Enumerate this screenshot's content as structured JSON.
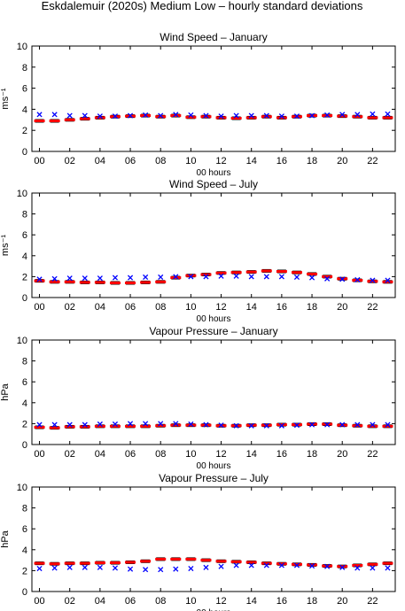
{
  "figure": {
    "title": "Eskdalemuir (2020s) Medium Low – hourly standard deviations"
  },
  "chart_data": [
    {
      "type": "scatter",
      "title": "Wind Speed – January",
      "xlabel": "00 hours",
      "ylabel": "ms⁻¹",
      "xlim": [
        -0.5,
        23.5
      ],
      "ylim": [
        0,
        10
      ],
      "yticks": [
        0,
        2,
        4,
        6,
        8,
        10
      ],
      "xticks": [
        "00",
        "02",
        "04",
        "06",
        "08",
        "10",
        "12",
        "14",
        "16",
        "18",
        "20",
        "22"
      ],
      "observed_marker_color": "#0000ff",
      "projected_marker_color": "#ff0000",
      "observed": [
        3.5,
        3.5,
        3.4,
        3.4,
        3.35,
        3.35,
        3.4,
        3.45,
        3.4,
        3.5,
        3.45,
        3.4,
        3.35,
        3.4,
        3.4,
        3.4,
        3.35,
        3.35,
        3.4,
        3.45,
        3.5,
        3.5,
        3.55,
        3.55
      ],
      "projected": [
        2.9,
        2.9,
        3.0,
        3.1,
        3.2,
        3.3,
        3.35,
        3.4,
        3.3,
        3.4,
        3.25,
        3.3,
        3.2,
        3.15,
        3.2,
        3.3,
        3.2,
        3.3,
        3.4,
        3.4,
        3.35,
        3.3,
        3.2,
        3.2
      ],
      "error": [
        0.12,
        0.12,
        0.12,
        0.12,
        0.12,
        0.12,
        0.12,
        0.12,
        0.12,
        0.12,
        0.12,
        0.12,
        0.12,
        0.12,
        0.12,
        0.12,
        0.12,
        0.12,
        0.12,
        0.12,
        0.12,
        0.12,
        0.12,
        0.12
      ]
    },
    {
      "type": "scatter",
      "title": "Wind Speed – July",
      "xlabel": "00 hours",
      "ylabel": "ms⁻¹",
      "xlim": [
        -0.5,
        23.5
      ],
      "ylim": [
        0,
        10
      ],
      "yticks": [
        0,
        2,
        4,
        6,
        8,
        10
      ],
      "xticks": [
        "00",
        "02",
        "04",
        "06",
        "08",
        "10",
        "12",
        "14",
        "16",
        "18",
        "20",
        "22"
      ],
      "observed_marker_color": "#0000ff",
      "projected_marker_color": "#ff0000",
      "observed": [
        1.75,
        1.8,
        1.85,
        1.85,
        1.85,
        1.9,
        1.9,
        1.95,
        1.95,
        2.0,
        2.0,
        2.0,
        2.05,
        2.05,
        2.0,
        2.0,
        2.0,
        1.95,
        1.9,
        1.8,
        1.75,
        1.7,
        1.65,
        1.65
      ],
      "projected": [
        1.6,
        1.5,
        1.5,
        1.45,
        1.45,
        1.4,
        1.4,
        1.45,
        1.5,
        1.9,
        2.1,
        2.2,
        2.35,
        2.4,
        2.45,
        2.55,
        2.5,
        2.4,
        2.25,
        2.0,
        1.8,
        1.65,
        1.55,
        1.5
      ],
      "error": [
        0.1,
        0.1,
        0.1,
        0.1,
        0.1,
        0.1,
        0.1,
        0.1,
        0.1,
        0.1,
        0.1,
        0.1,
        0.1,
        0.1,
        0.1,
        0.1,
        0.1,
        0.1,
        0.1,
        0.1,
        0.1,
        0.1,
        0.1,
        0.1
      ]
    },
    {
      "type": "scatter",
      "title": "Vapour Pressure – January",
      "xlabel": "00 hours",
      "ylabel": "hPa",
      "xlim": [
        -0.5,
        23.5
      ],
      "ylim": [
        0,
        10
      ],
      "yticks": [
        0,
        2,
        4,
        6,
        8,
        10
      ],
      "xticks": [
        "00",
        "02",
        "04",
        "06",
        "08",
        "10",
        "12",
        "14",
        "16",
        "18",
        "20",
        "22"
      ],
      "observed_marker_color": "#0000ff",
      "projected_marker_color": "#ff0000",
      "observed": [
        1.9,
        1.9,
        1.9,
        1.9,
        1.95,
        1.95,
        2.0,
        2.0,
        2.0,
        2.0,
        1.95,
        1.9,
        1.85,
        1.8,
        1.8,
        1.8,
        1.8,
        1.85,
        1.9,
        1.9,
        1.9,
        1.9,
        1.9,
        1.9
      ],
      "projected": [
        1.65,
        1.6,
        1.7,
        1.7,
        1.75,
        1.75,
        1.75,
        1.75,
        1.8,
        1.85,
        1.85,
        1.85,
        1.8,
        1.8,
        1.85,
        1.85,
        1.9,
        1.9,
        1.95,
        1.95,
        1.85,
        1.8,
        1.75,
        1.75
      ],
      "error": [
        0.1,
        0.1,
        0.1,
        0.1,
        0.1,
        0.1,
        0.1,
        0.1,
        0.1,
        0.1,
        0.1,
        0.1,
        0.1,
        0.1,
        0.1,
        0.1,
        0.1,
        0.1,
        0.1,
        0.1,
        0.1,
        0.1,
        0.1,
        0.1
      ]
    },
    {
      "type": "scatter",
      "title": "Vapour Pressure – July",
      "xlabel": "00 hours",
      "ylabel": "hPa",
      "xlim": [
        -0.5,
        23.5
      ],
      "ylim": [
        0,
        10
      ],
      "yticks": [
        0,
        2,
        4,
        6,
        8,
        10
      ],
      "xticks": [
        "00",
        "02",
        "04",
        "06",
        "08",
        "10",
        "12",
        "14",
        "16",
        "18",
        "20",
        "22"
      ],
      "observed_marker_color": "#0000ff",
      "projected_marker_color": "#ff0000",
      "observed": [
        2.2,
        2.25,
        2.3,
        2.3,
        2.3,
        2.25,
        2.15,
        2.1,
        2.1,
        2.15,
        2.2,
        2.3,
        2.4,
        2.5,
        2.5,
        2.5,
        2.5,
        2.5,
        2.45,
        2.4,
        2.3,
        2.25,
        2.25,
        2.25
      ],
      "projected": [
        2.7,
        2.65,
        2.7,
        2.7,
        2.75,
        2.75,
        2.8,
        2.9,
        3.1,
        3.1,
        3.1,
        3.0,
        2.9,
        2.85,
        2.8,
        2.7,
        2.65,
        2.6,
        2.55,
        2.45,
        2.4,
        2.5,
        2.6,
        2.7
      ],
      "error": [
        0.12,
        0.12,
        0.12,
        0.12,
        0.12,
        0.12,
        0.12,
        0.12,
        0.12,
        0.12,
        0.12,
        0.12,
        0.12,
        0.12,
        0.12,
        0.12,
        0.12,
        0.12,
        0.12,
        0.12,
        0.12,
        0.12,
        0.12,
        0.12
      ]
    }
  ]
}
